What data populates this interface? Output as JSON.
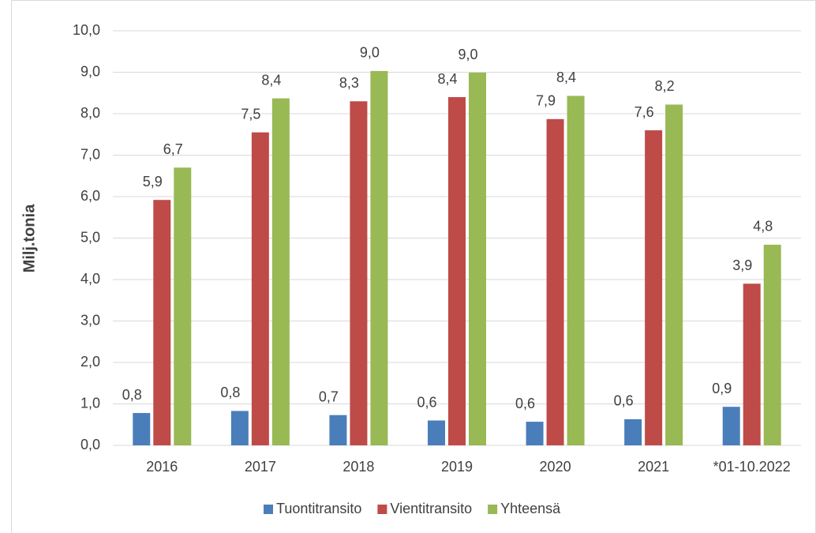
{
  "chart_data": {
    "type": "bar",
    "y_label": "Milj.tonia",
    "categories": [
      "2016",
      "2017",
      "2018",
      "2019",
      "2020",
      "2021",
      "*01-10.2022"
    ],
    "series": [
      {
        "name": "Tuontitransito",
        "color": "#4a7ebb",
        "values": [
          0.78,
          0.83,
          0.73,
          0.6,
          0.57,
          0.63,
          0.93
        ],
        "value_labels": [
          "0,8",
          "0,8",
          "0,7",
          "0,6",
          "0,6",
          "0,6",
          "0,9"
        ]
      },
      {
        "name": "Vientitransito",
        "color": "#be4b48",
        "values": [
          5.92,
          7.55,
          8.3,
          8.4,
          7.87,
          7.6,
          3.9
        ],
        "value_labels": [
          "5,9",
          "7,5",
          "8,3",
          "8,4",
          "7,9",
          "7,6",
          "3,9"
        ]
      },
      {
        "name": "Yhteensä",
        "color": "#98b954",
        "values": [
          6.7,
          8.37,
          9.03,
          8.99,
          8.43,
          8.22,
          4.84
        ],
        "value_labels": [
          "6,7",
          "8,4",
          "9,0",
          "9,0",
          "8,4",
          "8,2",
          "4,8"
        ]
      }
    ],
    "ylim": [
      0,
      10
    ],
    "yticks": [
      {
        "value": 0,
        "label": "0,0"
      },
      {
        "value": 1,
        "label": "1,0"
      },
      {
        "value": 2,
        "label": "2,0"
      },
      {
        "value": 3,
        "label": "3,0"
      },
      {
        "value": 4,
        "label": "4,0"
      },
      {
        "value": 5,
        "label": "5,0"
      },
      {
        "value": 6,
        "label": "6,0"
      },
      {
        "value": 7,
        "label": "7,0"
      },
      {
        "value": 8,
        "label": "8,0"
      },
      {
        "value": 9,
        "label": "9,0"
      },
      {
        "value": 10,
        "label": "10,0"
      }
    ],
    "grid": true,
    "legend": "bottom"
  }
}
